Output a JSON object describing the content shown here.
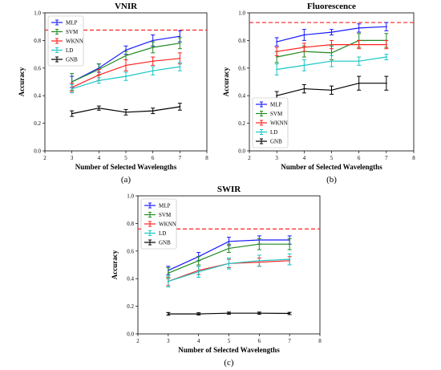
{
  "chart_data": [
    {
      "type": "line",
      "title": "VNIR",
      "caption": "(a)",
      "xlabel": "Number of Selected Wavelengths",
      "ylabel": "Accuracy",
      "xlim": [
        2,
        8
      ],
      "ylim": [
        0.0,
        1.0
      ],
      "xticks": [
        "2",
        "3",
        "4",
        "5",
        "6",
        "7",
        "8"
      ],
      "yticks": [
        "0.0",
        "0.2",
        "0.4",
        "0.6",
        "0.8",
        "1.0"
      ],
      "x": [
        3,
        4,
        5,
        6,
        7
      ],
      "reference_line": 0.875,
      "legend_position": "top-left",
      "series": [
        {
          "name": "MLP",
          "color": "#1a1aff",
          "values": [
            0.5,
            0.6,
            0.73,
            0.8,
            0.83
          ],
          "errors": [
            0.04,
            0.03,
            0.03,
            0.04,
            0.04
          ]
        },
        {
          "name": "SVM",
          "color": "#1f8a1f",
          "values": [
            0.5,
            0.59,
            0.69,
            0.75,
            0.78
          ],
          "errors": [
            0.06,
            0.04,
            0.03,
            0.04,
            0.04
          ]
        },
        {
          "name": "WKNN",
          "color": "#ff2020",
          "values": [
            0.46,
            0.55,
            0.62,
            0.65,
            0.67
          ],
          "errors": [
            0.03,
            0.04,
            0.04,
            0.03,
            0.04
          ]
        },
        {
          "name": "LD",
          "color": "#19c6c6",
          "values": [
            0.45,
            0.51,
            0.54,
            0.58,
            0.61
          ],
          "errors": [
            0.03,
            0.02,
            0.03,
            0.03,
            0.03
          ]
        },
        {
          "name": "GNB",
          "color": "#000000",
          "values": [
            0.27,
            0.31,
            0.28,
            0.29,
            0.32
          ],
          "errors": [
            0.02,
            0.015,
            0.02,
            0.02,
            0.025
          ]
        }
      ]
    },
    {
      "type": "line",
      "title": "Fluorescence",
      "caption": "(b)",
      "xlabel": "Number of Selected Wavelengths",
      "ylabel": "Accuracy",
      "xlim": [
        2,
        8
      ],
      "ylim": [
        0.0,
        1.0
      ],
      "xticks": [
        "2",
        "3",
        "4",
        "5",
        "6",
        "7",
        "8"
      ],
      "yticks": [
        "0.0",
        "0.2",
        "0.4",
        "0.6",
        "0.8",
        "1.0"
      ],
      "x": [
        3,
        4,
        5,
        6,
        7
      ],
      "reference_line": 0.93,
      "legend_position": "bottom-left",
      "series": [
        {
          "name": "MLP",
          "color": "#1a1aff",
          "values": [
            0.79,
            0.84,
            0.86,
            0.89,
            0.9
          ],
          "errors": [
            0.03,
            0.04,
            0.02,
            0.03,
            0.03
          ]
        },
        {
          "name": "SVM",
          "color": "#1f8a1f",
          "values": [
            0.68,
            0.72,
            0.71,
            0.8,
            0.8
          ],
          "errors": [
            0.04,
            0.04,
            0.05,
            0.05,
            0.05
          ]
        },
        {
          "name": "WKNN",
          "color": "#ff2020",
          "values": [
            0.72,
            0.75,
            0.77,
            0.77,
            0.77
          ],
          "errors": [
            0.03,
            0.03,
            0.03,
            0.03,
            0.03
          ]
        },
        {
          "name": "LD",
          "color": "#19c6c6",
          "values": [
            0.59,
            0.62,
            0.65,
            0.65,
            0.68
          ],
          "errors": [
            0.04,
            0.04,
            0.04,
            0.03,
            0.02
          ]
        },
        {
          "name": "GNB",
          "color": "#000000",
          "values": [
            0.4,
            0.45,
            0.44,
            0.49,
            0.49
          ],
          "errors": [
            0.03,
            0.03,
            0.03,
            0.05,
            0.05
          ]
        }
      ]
    },
    {
      "type": "line",
      "title": "SWIR",
      "caption": "(c)",
      "xlabel": "Number of Selected Wavelengths",
      "ylabel": "Accuracy",
      "xlim": [
        2,
        8
      ],
      "ylim": [
        0.0,
        1.0
      ],
      "xticks": [
        "2",
        "3",
        "4",
        "5",
        "6",
        "7",
        "8"
      ],
      "yticks": [
        "0.0",
        "0.2",
        "0.4",
        "0.6",
        "0.8",
        "1.0"
      ],
      "x": [
        3,
        4,
        5,
        6,
        7
      ],
      "reference_line": 0.76,
      "legend_position": "top-left",
      "series": [
        {
          "name": "MLP",
          "color": "#1a1aff",
          "values": [
            0.46,
            0.56,
            0.67,
            0.68,
            0.68
          ],
          "errors": [
            0.03,
            0.03,
            0.03,
            0.03,
            0.03
          ]
        },
        {
          "name": "SVM",
          "color": "#1f8a1f",
          "values": [
            0.44,
            0.53,
            0.62,
            0.65,
            0.65
          ],
          "errors": [
            0.04,
            0.03,
            0.03,
            0.04,
            0.04
          ]
        },
        {
          "name": "WKNN",
          "color": "#ff2020",
          "values": [
            0.38,
            0.46,
            0.51,
            0.52,
            0.53
          ],
          "errors": [
            0.03,
            0.03,
            0.03,
            0.03,
            0.03
          ]
        },
        {
          "name": "LD",
          "color": "#19c6c6",
          "values": [
            0.38,
            0.45,
            0.51,
            0.53,
            0.54
          ],
          "errors": [
            0.04,
            0.04,
            0.04,
            0.04,
            0.04
          ]
        },
        {
          "name": "GNB",
          "color": "#000000",
          "values": [
            0.145,
            0.145,
            0.15,
            0.15,
            0.148
          ],
          "errors": [
            0.01,
            0.008,
            0.008,
            0.008,
            0.008
          ]
        }
      ]
    }
  ]
}
